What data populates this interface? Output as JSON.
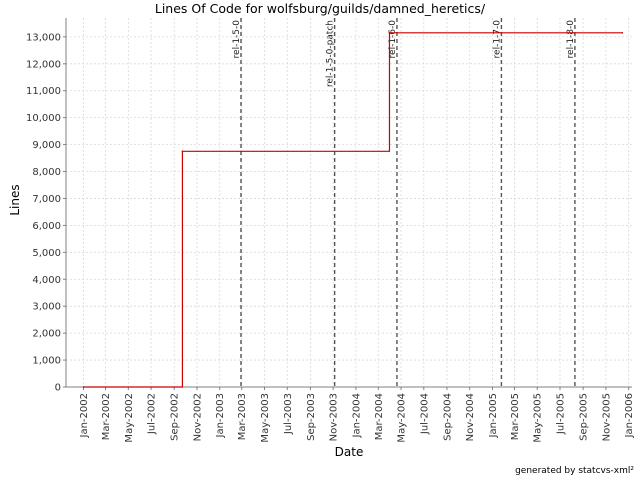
{
  "chart_data": {
    "type": "line",
    "title": "Lines Of Code for wolfsburg/guilds/damned_heretics/",
    "xlabel": "Date",
    "ylabel": "Lines",
    "x_ticks": [
      "Jan-2002",
      "Mar-2002",
      "May-2002",
      "Jul-2002",
      "Sep-2002",
      "Nov-2002",
      "Jan-2003",
      "Mar-2003",
      "May-2003",
      "Jul-2003",
      "Sep-2003",
      "Nov-2003",
      "Jan-2004",
      "Mar-2004",
      "May-2004",
      "Jul-2004",
      "Sep-2004",
      "Nov-2004",
      "Jan-2005",
      "Mar-2005",
      "May-2005",
      "Jul-2005",
      "Sep-2005",
      "Nov-2005",
      "Jan-2006"
    ],
    "y_ticks": [
      "0",
      "1,000",
      "2,000",
      "3,000",
      "4,000",
      "5,000",
      "6,000",
      "7,000",
      "8,000",
      "9,000",
      "10,000",
      "11,000",
      "12,000",
      "13,000"
    ],
    "ylim": [
      0,
      13700
    ],
    "xlim": [
      "2001-11-15",
      "2006-01-10"
    ],
    "grid": true,
    "series": [
      {
        "color": "#cc0000",
        "step": true,
        "points": [
          {
            "x": "2002-01-01",
            "y": 0
          },
          {
            "x": "2002-09-23",
            "y": 8750
          },
          {
            "x": "2004-03-31",
            "y": 13150
          },
          {
            "x": "2005-12-15",
            "y": 13150
          }
        ]
      }
    ],
    "markers": [
      {
        "label": "rel-1-5-0",
        "x": "2003-02-27"
      },
      {
        "label": "rel-1-5-0-patch",
        "x": "2003-11-05"
      },
      {
        "label": "rel-1-6-0",
        "x": "2004-04-20"
      },
      {
        "label": "rel-1-7-0",
        "x": "2005-01-25"
      },
      {
        "label": "rel-1-8-0",
        "x": "2005-08-10"
      }
    ]
  },
  "footer": "generated by statcvs-xml²"
}
